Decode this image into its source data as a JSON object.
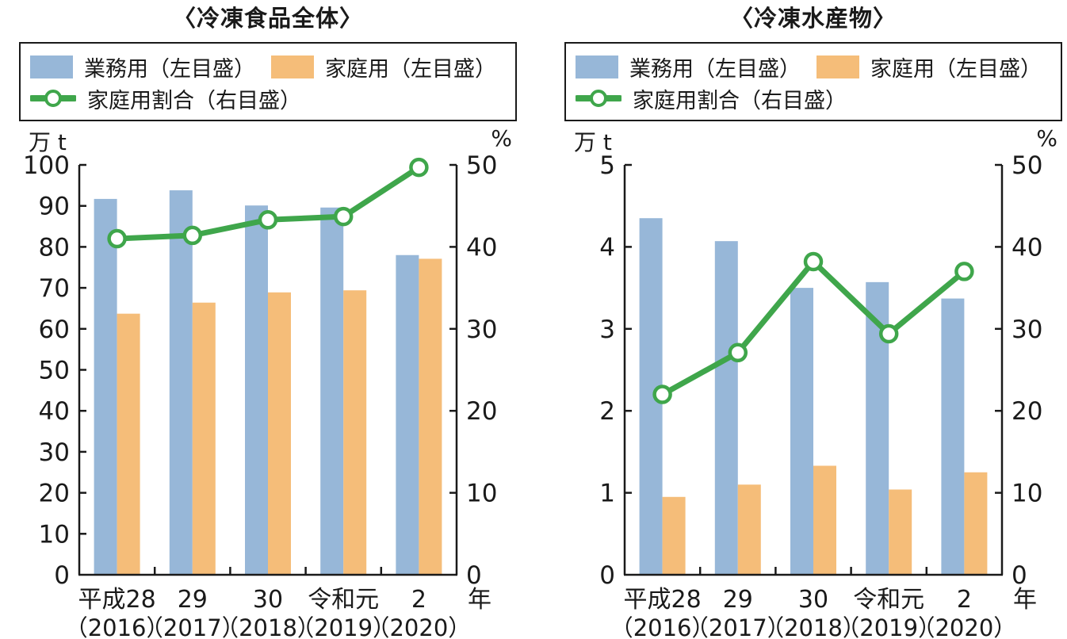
{
  "legend": {
    "business": "業務用（左目盛）",
    "household": "家庭用（左目盛）",
    "ratio": "家庭用割合（右目盛）"
  },
  "colors": {
    "bar_business": "#97B7D8",
    "bar_household": "#F5BD79",
    "line_ratio": "#3FA64B",
    "marker_fill": "#FFFFFF",
    "axis": "#1A1A1A",
    "text": "#1A1A1A"
  },
  "chart_data": [
    {
      "type": "bar+line",
      "title": "〈冷凍食品全体〉",
      "categories": [
        "平成28",
        "29",
        "30",
        "令和元",
        "2"
      ],
      "categories_sub": [
        "（2016）",
        "（2017）",
        "（2018）",
        "（2019）",
        "（2020）"
      ],
      "x_suffix": "年",
      "left_axis": {
        "min": 0,
        "max": 100,
        "step": 10,
        "unit": "万 t"
      },
      "right_axis": {
        "min": 0,
        "max": 50,
        "step": 10,
        "unit": "%"
      },
      "series": [
        {
          "name": "業務用（左目盛）",
          "kind": "bar",
          "axis": "left",
          "values": [
            91.7,
            93.8,
            90.1,
            89.6,
            78.0
          ]
        },
        {
          "name": "家庭用（左目盛）",
          "kind": "bar",
          "axis": "left",
          "values": [
            63.7,
            66.4,
            68.9,
            69.4,
            77.1
          ]
        },
        {
          "name": "家庭用割合（右目盛）",
          "kind": "line",
          "axis": "right",
          "values": [
            41.0,
            41.4,
            43.3,
            43.7,
            49.7
          ]
        }
      ],
      "legend_position": "top",
      "grid": false
    },
    {
      "type": "bar+line",
      "title": "〈冷凍水産物〉",
      "categories": [
        "平成28",
        "29",
        "30",
        "令和元",
        "2"
      ],
      "categories_sub": [
        "（2016）",
        "（2017）",
        "（2018）",
        "（2019）",
        "（2020）"
      ],
      "x_suffix": "年",
      "left_axis": {
        "min": 0,
        "max": 5,
        "step": 1,
        "unit": "万 t"
      },
      "right_axis": {
        "min": 0,
        "max": 50,
        "step": 10,
        "unit": "%"
      },
      "series": [
        {
          "name": "業務用（左目盛）",
          "kind": "bar",
          "axis": "left",
          "values": [
            4.35,
            4.07,
            3.5,
            3.57,
            3.37
          ]
        },
        {
          "name": "家庭用（左目盛）",
          "kind": "bar",
          "axis": "left",
          "values": [
            0.95,
            1.1,
            1.33,
            1.04,
            1.25
          ]
        },
        {
          "name": "家庭用割合（右目盛）",
          "kind": "line",
          "axis": "right",
          "values": [
            22.0,
            27.1,
            38.2,
            29.4,
            37.0
          ]
        }
      ],
      "legend_position": "top",
      "grid": false
    }
  ]
}
